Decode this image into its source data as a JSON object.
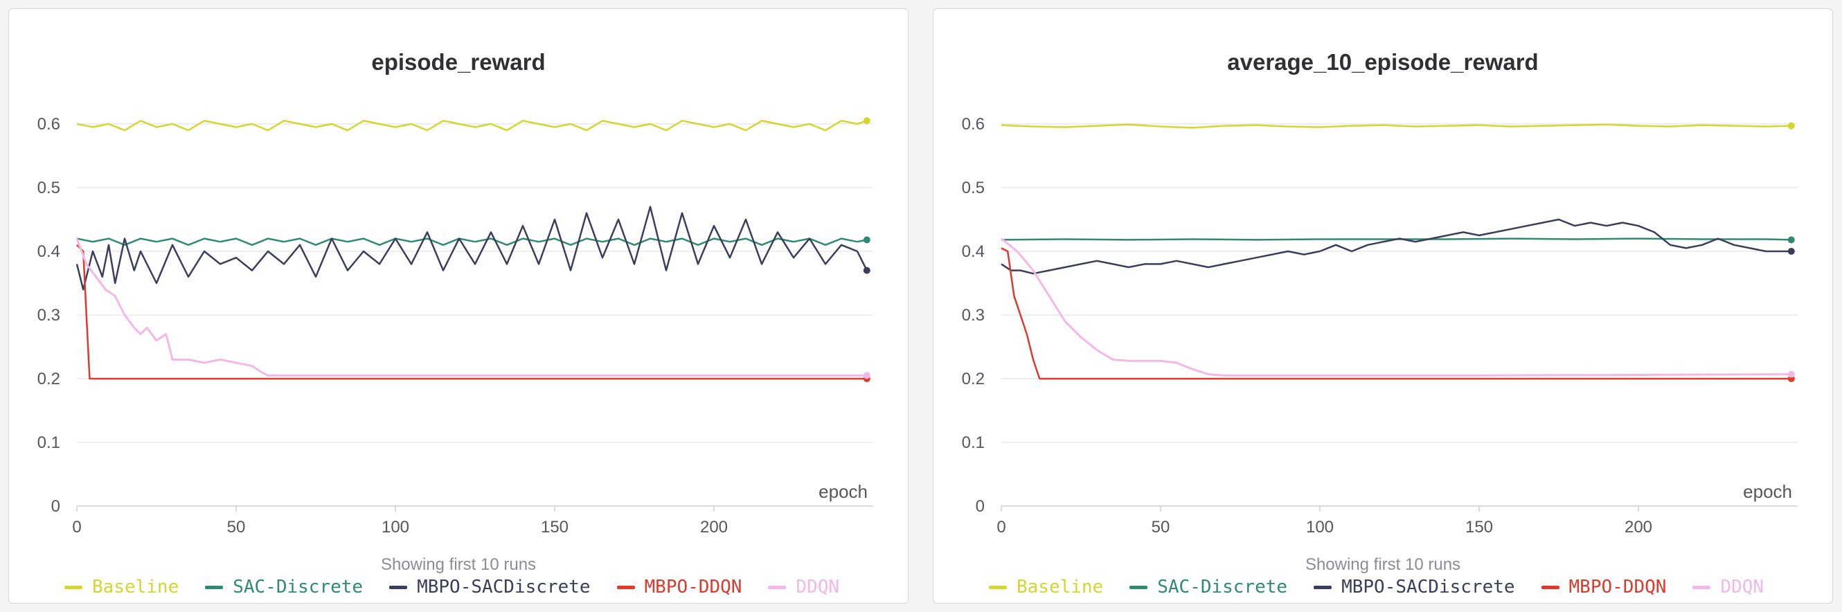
{
  "footnote": "Showing first 10 runs",
  "colors": {
    "baseline": "#d4d62e",
    "sac": "#2e8b72",
    "mbpo_sac": "#3b3d5c",
    "mbpo_ddqn": "#e0392b",
    "ddqn": "#f4b8e8"
  },
  "chart_data": [
    {
      "type": "line",
      "title": "episode_reward",
      "xlabel": "epoch",
      "ylabel": "",
      "xlim": [
        0,
        250
      ],
      "ylim": [
        0,
        0.65
      ],
      "x_ticks": [
        0,
        50,
        100,
        150,
        200
      ],
      "y_ticks": [
        0,
        0.1,
        0.2,
        0.3,
        0.4,
        0.5,
        0.6
      ],
      "grid": "horizontal",
      "legend_placement": "bottom",
      "series": [
        {
          "name": "Baseline",
          "color": "#d4d62e",
          "x": [
            0,
            5,
            10,
            15,
            20,
            25,
            30,
            35,
            40,
            45,
            50,
            55,
            60,
            65,
            70,
            75,
            80,
            85,
            90,
            95,
            100,
            105,
            110,
            115,
            120,
            125,
            130,
            135,
            140,
            145,
            150,
            155,
            160,
            165,
            170,
            175,
            180,
            185,
            190,
            195,
            200,
            205,
            210,
            215,
            220,
            225,
            230,
            235,
            240,
            245,
            248
          ],
          "y": [
            0.6,
            0.595,
            0.6,
            0.59,
            0.605,
            0.595,
            0.6,
            0.59,
            0.605,
            0.6,
            0.595,
            0.6,
            0.59,
            0.605,
            0.6,
            0.595,
            0.6,
            0.59,
            0.605,
            0.6,
            0.595,
            0.6,
            0.59,
            0.605,
            0.6,
            0.595,
            0.6,
            0.59,
            0.605,
            0.6,
            0.595,
            0.6,
            0.59,
            0.605,
            0.6,
            0.595,
            0.6,
            0.59,
            0.605,
            0.6,
            0.595,
            0.6,
            0.59,
            0.605,
            0.6,
            0.595,
            0.6,
            0.59,
            0.605,
            0.6,
            0.605
          ]
        },
        {
          "name": "SAC-Discrete",
          "color": "#2e8b72",
          "x": [
            0,
            5,
            10,
            15,
            20,
            25,
            30,
            35,
            40,
            45,
            50,
            55,
            60,
            65,
            70,
            75,
            80,
            85,
            90,
            95,
            100,
            105,
            110,
            115,
            120,
            125,
            130,
            135,
            140,
            145,
            150,
            155,
            160,
            165,
            170,
            175,
            180,
            185,
            190,
            195,
            200,
            205,
            210,
            215,
            220,
            225,
            230,
            235,
            240,
            245,
            248
          ],
          "y": [
            0.42,
            0.415,
            0.42,
            0.41,
            0.42,
            0.415,
            0.42,
            0.41,
            0.42,
            0.415,
            0.42,
            0.41,
            0.42,
            0.415,
            0.42,
            0.41,
            0.42,
            0.415,
            0.42,
            0.41,
            0.42,
            0.415,
            0.42,
            0.41,
            0.42,
            0.415,
            0.42,
            0.41,
            0.42,
            0.415,
            0.42,
            0.41,
            0.42,
            0.415,
            0.42,
            0.41,
            0.42,
            0.415,
            0.42,
            0.41,
            0.42,
            0.415,
            0.42,
            0.41,
            0.42,
            0.415,
            0.42,
            0.41,
            0.42,
            0.415,
            0.418
          ]
        },
        {
          "name": "MBPO-SACDiscrete",
          "color": "#3b3d5c",
          "x": [
            0,
            2,
            5,
            8,
            10,
            12,
            15,
            18,
            20,
            25,
            30,
            35,
            40,
            45,
            50,
            55,
            60,
            65,
            70,
            75,
            80,
            85,
            90,
            95,
            100,
            105,
            110,
            115,
            120,
            125,
            130,
            135,
            140,
            145,
            150,
            155,
            160,
            165,
            170,
            175,
            180,
            185,
            190,
            195,
            200,
            205,
            210,
            215,
            220,
            225,
            230,
            235,
            240,
            245,
            248
          ],
          "y": [
            0.38,
            0.34,
            0.4,
            0.36,
            0.41,
            0.35,
            0.42,
            0.37,
            0.4,
            0.35,
            0.41,
            0.36,
            0.4,
            0.38,
            0.39,
            0.37,
            0.4,
            0.38,
            0.41,
            0.36,
            0.42,
            0.37,
            0.4,
            0.38,
            0.42,
            0.38,
            0.43,
            0.37,
            0.42,
            0.38,
            0.43,
            0.38,
            0.44,
            0.38,
            0.45,
            0.37,
            0.46,
            0.39,
            0.45,
            0.38,
            0.47,
            0.37,
            0.46,
            0.38,
            0.44,
            0.39,
            0.45,
            0.38,
            0.43,
            0.39,
            0.42,
            0.38,
            0.41,
            0.4,
            0.37
          ]
        },
        {
          "name": "MBPO-DDQN",
          "color": "#e0392b",
          "x": [
            0,
            2,
            4,
            10,
            50,
            100,
            150,
            200,
            248
          ],
          "y": [
            0.41,
            0.4,
            0.2,
            0.2,
            0.2,
            0.2,
            0.2,
            0.2,
            0.2
          ]
        },
        {
          "name": "DDQN",
          "color": "#f4b8e8",
          "x": [
            0,
            3,
            6,
            9,
            12,
            15,
            18,
            20,
            22,
            25,
            28,
            30,
            35,
            40,
            45,
            50,
            55,
            58,
            60,
            70,
            80,
            100,
            150,
            200,
            248
          ],
          "y": [
            0.42,
            0.38,
            0.36,
            0.34,
            0.33,
            0.3,
            0.28,
            0.27,
            0.28,
            0.26,
            0.27,
            0.23,
            0.23,
            0.225,
            0.23,
            0.225,
            0.22,
            0.21,
            0.205,
            0.205,
            0.205,
            0.205,
            0.205,
            0.205,
            0.205
          ]
        }
      ]
    },
    {
      "type": "line",
      "title": "average_10_episode_reward",
      "xlabel": "epoch",
      "ylabel": "",
      "xlim": [
        0,
        250
      ],
      "ylim": [
        0,
        0.65
      ],
      "x_ticks": [
        0,
        50,
        100,
        150,
        200
      ],
      "y_ticks": [
        0,
        0.1,
        0.2,
        0.3,
        0.4,
        0.5,
        0.6
      ],
      "grid": "horizontal",
      "legend_placement": "bottom",
      "series": [
        {
          "name": "Baseline",
          "color": "#d4d62e",
          "x": [
            0,
            10,
            20,
            30,
            40,
            50,
            60,
            70,
            80,
            90,
            100,
            110,
            120,
            130,
            140,
            150,
            160,
            170,
            180,
            190,
            200,
            210,
            220,
            230,
            240,
            248
          ],
          "y": [
            0.598,
            0.596,
            0.595,
            0.597,
            0.599,
            0.596,
            0.594,
            0.597,
            0.598,
            0.596,
            0.595,
            0.597,
            0.598,
            0.596,
            0.597,
            0.598,
            0.596,
            0.597,
            0.598,
            0.599,
            0.597,
            0.596,
            0.598,
            0.597,
            0.596,
            0.597
          ]
        },
        {
          "name": "SAC-Discrete",
          "color": "#2e8b72",
          "x": [
            0,
            20,
            40,
            60,
            80,
            100,
            120,
            140,
            160,
            180,
            200,
            220,
            240,
            248
          ],
          "y": [
            0.418,
            0.419,
            0.418,
            0.419,
            0.418,
            0.419,
            0.419,
            0.419,
            0.42,
            0.419,
            0.42,
            0.419,
            0.419,
            0.418
          ]
        },
        {
          "name": "MBPO-SACDiscrete",
          "color": "#3b3d5c",
          "x": [
            0,
            3,
            6,
            10,
            15,
            20,
            25,
            30,
            35,
            40,
            45,
            50,
            55,
            60,
            65,
            70,
            75,
            80,
            85,
            90,
            95,
            100,
            105,
            110,
            115,
            120,
            125,
            130,
            135,
            140,
            145,
            150,
            155,
            160,
            165,
            170,
            175,
            180,
            185,
            190,
            195,
            200,
            205,
            210,
            215,
            220,
            225,
            230,
            235,
            240,
            245,
            248
          ],
          "y": [
            0.38,
            0.37,
            0.37,
            0.365,
            0.37,
            0.375,
            0.38,
            0.385,
            0.38,
            0.375,
            0.38,
            0.38,
            0.385,
            0.38,
            0.375,
            0.38,
            0.385,
            0.39,
            0.395,
            0.4,
            0.395,
            0.4,
            0.41,
            0.4,
            0.41,
            0.415,
            0.42,
            0.415,
            0.42,
            0.425,
            0.43,
            0.425,
            0.43,
            0.435,
            0.44,
            0.445,
            0.45,
            0.44,
            0.445,
            0.44,
            0.445,
            0.44,
            0.43,
            0.41,
            0.405,
            0.41,
            0.42,
            0.41,
            0.405,
            0.4,
            0.4,
            0.4
          ]
        },
        {
          "name": "MBPO-DDQN",
          "color": "#e0392b",
          "x": [
            0,
            2,
            4,
            6,
            8,
            10,
            12,
            14,
            20,
            50,
            100,
            150,
            200,
            248
          ],
          "y": [
            0.405,
            0.4,
            0.33,
            0.3,
            0.27,
            0.23,
            0.2,
            0.2,
            0.2,
            0.2,
            0.2,
            0.2,
            0.2,
            0.2
          ]
        },
        {
          "name": "DDQN",
          "color": "#f4b8e8",
          "x": [
            0,
            5,
            10,
            15,
            20,
            25,
            30,
            35,
            40,
            45,
            50,
            55,
            60,
            65,
            70,
            80,
            100,
            150,
            200,
            248
          ],
          "y": [
            0.42,
            0.4,
            0.37,
            0.33,
            0.29,
            0.265,
            0.245,
            0.23,
            0.228,
            0.228,
            0.228,
            0.225,
            0.215,
            0.207,
            0.205,
            0.205,
            0.205,
            0.205,
            0.206,
            0.207
          ]
        }
      ]
    }
  ]
}
